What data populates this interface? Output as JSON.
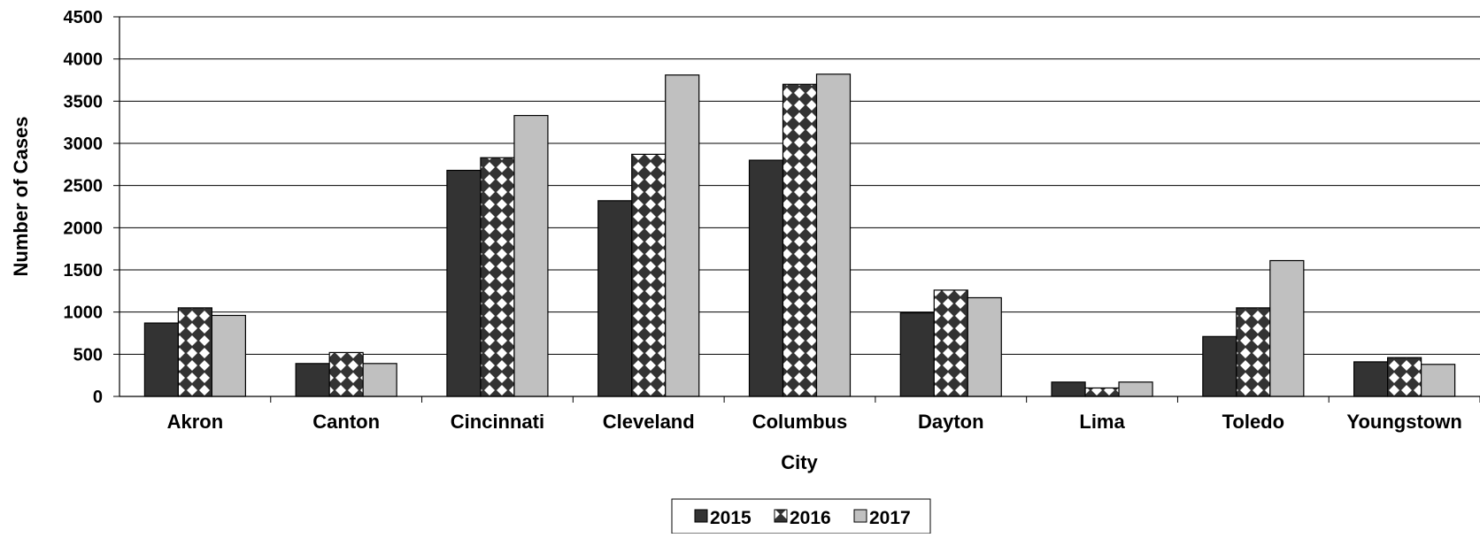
{
  "chart_data": {
    "type": "bar",
    "title": "",
    "xlabel": "City",
    "ylabel": "Number of Cases",
    "ylim": [
      0,
      4500
    ],
    "yticks": [
      0,
      500,
      1000,
      1500,
      2000,
      2500,
      3000,
      3500,
      4000,
      4500
    ],
    "grid": true,
    "legend_position": "bottom",
    "categories": [
      "Akron",
      "Canton",
      "Cincinnati",
      "Cleveland",
      "Columbus",
      "Dayton",
      "Lima",
      "Toledo",
      "Youngstown"
    ],
    "series": [
      {
        "name": "2015",
        "pattern": "solid-dark",
        "color": "#333333",
        "values": [
          870,
          390,
          2680,
          2320,
          2800,
          990,
          170,
          710,
          410
        ]
      },
      {
        "name": "2016",
        "pattern": "checkered",
        "color": "#333333",
        "values": [
          1050,
          520,
          2830,
          2870,
          3700,
          1260,
          100,
          1050,
          460
        ]
      },
      {
        "name": "2017",
        "pattern": "solid-light",
        "color": "#c0c0c0",
        "values": [
          960,
          390,
          3330,
          3810,
          3820,
          1170,
          170,
          1610,
          380
        ]
      }
    ]
  }
}
